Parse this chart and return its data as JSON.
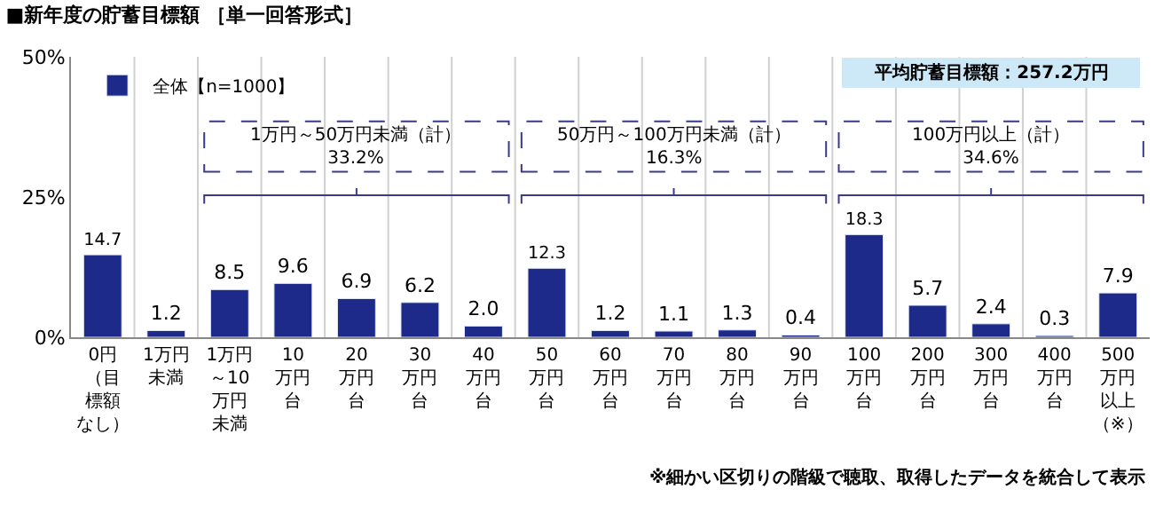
{
  "chart_data": {
    "type": "bar",
    "title": "■新年度の貯蓄目標額 ［単一回答形式］",
    "categories": [
      "0円（目標額なし）",
      "1万円未満",
      "1万円～10万円未満",
      "10万円台",
      "20万円台",
      "30万円台",
      "40万円台",
      "50万円台",
      "60万円台",
      "70万円台",
      "80万円台",
      "90万円台",
      "100万円台",
      "200万円台",
      "300万円台",
      "400万円台",
      "500万円以上（※）"
    ],
    "series": [
      {
        "name": "全体【n=1000】",
        "color": "#1e2a8a",
        "values": [
          14.7,
          1.2,
          8.5,
          9.6,
          6.9,
          6.2,
          2.0,
          12.3,
          1.2,
          1.1,
          1.3,
          0.4,
          18.3,
          5.7,
          2.4,
          0.3,
          7.9
        ],
        "value_labels": [
          "14.7",
          "1.2",
          "8.5",
          "9.6",
          "6.9",
          "6.2",
          "2.0",
          "12.3",
          "1.2",
          "1.1",
          "1.3",
          "0.4",
          "18.3",
          "5.7",
          "2.4",
          "0.3",
          "7.9"
        ]
      }
    ],
    "ylim": [
      0,
      50
    ],
    "yticks": [
      {
        "value": 0,
        "label": "0%"
      },
      {
        "value": 25,
        "label": "25%"
      },
      {
        "value": 50,
        "label": "50%"
      }
    ],
    "grid": "x",
    "legend": "top left",
    "annotations": [
      "平均貯蓄目標額：257.2万円",
      "1万円～50万円未満（計）\n33.2%",
      "50万円～100万円未満（計）\n16.3%",
      "100万円以上（計）\n34.6%",
      "※細かい区切りの階級で聴取、取得したデータを統合して表示"
    ]
  }
}
